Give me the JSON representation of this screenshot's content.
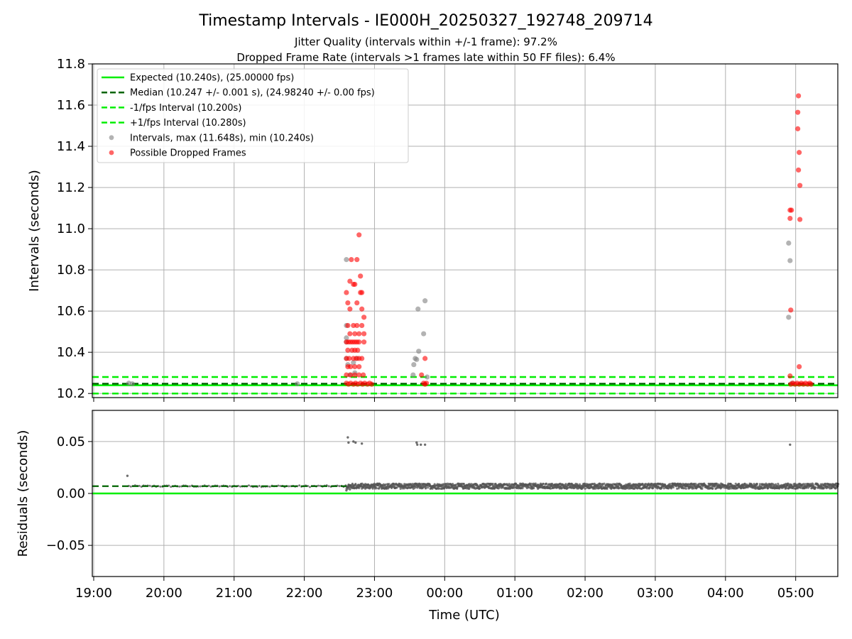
{
  "colors": {
    "expected": "#00ee00",
    "median": "#006400",
    "bounds": "#00ee00",
    "intervals": "#808080",
    "dropped": "#ff0000",
    "residuals": "#555555"
  },
  "chart_data": [
    {
      "type": "scatter",
      "title": "Timestamp Intervals - IE000H_20250327_192748_209714",
      "subtitle_1": "Jitter Quality (intervals within +/-1 frame): 97.2%",
      "subtitle_2": "Dropped Frame Rate (intervals >1 frames late within 50 FF files): 6.4%",
      "xlabel": "",
      "ylabel": "Intervals (seconds)",
      "x_unit": "hours since 19:00 UTC",
      "xlim": [
        -0.02,
        10.6
      ],
      "ylim": [
        10.18,
        11.8
      ],
      "yticks": [
        10.2,
        10.4,
        10.6,
        10.8,
        11.0,
        11.2,
        11.4,
        11.6,
        11.8
      ],
      "ytick_labels": [
        "10.2",
        "10.4",
        "10.6",
        "10.8",
        "11.0",
        "11.2",
        "11.4",
        "11.6",
        "11.8"
      ],
      "grid": true,
      "legend_position": "top-left",
      "legend": [
        {
          "label": "Expected (10.240s), (25.00000 fps)",
          "style": "solid-line",
          "color": "#00ee00"
        },
        {
          "label": "Median (10.247 +/- 0.001 s), (24.98240 +/- 0.00 fps)",
          "style": "dashed-line",
          "color": "#006400"
        },
        {
          "label": "-1/fps Interval (10.200s)",
          "style": "dashed-line",
          "color": "#00ee00"
        },
        {
          "label": "+1/fps Interval (10.280s)",
          "style": "dashed-line",
          "color": "#00ee00"
        },
        {
          "label": "Intervals, max (11.648s), min (10.240s)",
          "style": "marker",
          "color": "#808080"
        },
        {
          "label": "Possible Dropped Frames",
          "style": "marker",
          "color": "#ff0000"
        }
      ],
      "lines": {
        "expected": 10.24,
        "median": 10.247,
        "lower": 10.2,
        "upper": 10.28
      },
      "series": [
        {
          "name": "Intervals",
          "points": [
            [
              0.5,
              10.25
            ],
            [
              0.55,
              10.247
            ],
            [
              2.9,
              10.247
            ],
            [
              3.6,
              10.85
            ],
            [
              3.6,
              10.53
            ],
            [
              3.6,
              10.47
            ],
            [
              3.6,
              10.45
            ],
            [
              3.6,
              10.37
            ],
            [
              3.62,
              10.34
            ],
            [
              3.65,
              10.29
            ],
            [
              3.7,
              10.35
            ],
            [
              3.72,
              10.3
            ],
            [
              3.75,
              10.37
            ],
            [
              4.55,
              10.29
            ],
            [
              4.56,
              10.34
            ],
            [
              4.58,
              10.37
            ],
            [
              4.6,
              10.365
            ],
            [
              4.62,
              10.61
            ],
            [
              4.63,
              10.405
            ],
            [
              4.7,
              10.49
            ],
            [
              4.72,
              10.65
            ],
            [
              4.75,
              10.28
            ],
            [
              9.9,
              10.93
            ],
            [
              9.92,
              10.845
            ],
            [
              9.9,
              10.57
            ],
            [
              9.95,
              10.25
            ]
          ]
        },
        {
          "name": "Possible Dropped Frames",
          "points": [
            [
              3.6,
              10.69
            ],
            [
              3.62,
              10.64
            ],
            [
              3.65,
              10.745
            ],
            [
              3.65,
              10.61
            ],
            [
              3.67,
              10.85
            ],
            [
              3.7,
              10.73
            ],
            [
              3.72,
              10.73
            ],
            [
              3.75,
              10.85
            ],
            [
              3.75,
              10.64
            ],
            [
              3.78,
              10.97
            ],
            [
              3.8,
              10.77
            ],
            [
              3.8,
              10.69
            ],
            [
              3.82,
              10.69
            ],
            [
              3.82,
              10.61
            ],
            [
              3.85,
              10.57
            ],
            [
              3.62,
              10.53
            ],
            [
              3.65,
              10.49
            ],
            [
              3.7,
              10.53
            ],
            [
              3.72,
              10.49
            ],
            [
              3.75,
              10.53
            ],
            [
              3.78,
              10.49
            ],
            [
              3.82,
              10.53
            ],
            [
              3.85,
              10.49
            ],
            [
              3.6,
              10.45
            ],
            [
              3.63,
              10.45
            ],
            [
              3.66,
              10.45
            ],
            [
              3.69,
              10.45
            ],
            [
              3.72,
              10.45
            ],
            [
              3.75,
              10.45
            ],
            [
              3.78,
              10.45
            ],
            [
              3.85,
              10.45
            ],
            [
              3.62,
              10.41
            ],
            [
              3.68,
              10.41
            ],
            [
              3.72,
              10.41
            ],
            [
              3.76,
              10.41
            ],
            [
              3.6,
              10.37
            ],
            [
              3.64,
              10.37
            ],
            [
              3.7,
              10.37
            ],
            [
              3.74,
              10.37
            ],
            [
              3.78,
              10.37
            ],
            [
              3.82,
              10.37
            ],
            [
              3.62,
              10.33
            ],
            [
              3.66,
              10.33
            ],
            [
              3.72,
              10.33
            ],
            [
              3.78,
              10.33
            ],
            [
              3.6,
              10.29
            ],
            [
              3.66,
              10.29
            ],
            [
              3.72,
              10.29
            ],
            [
              3.78,
              10.29
            ],
            [
              3.84,
              10.29
            ],
            [
              3.6,
              10.25
            ],
            [
              3.63,
              10.245
            ],
            [
              3.66,
              10.25
            ],
            [
              3.7,
              10.245
            ],
            [
              3.73,
              10.25
            ],
            [
              3.76,
              10.245
            ],
            [
              3.8,
              10.25
            ],
            [
              3.83,
              10.245
            ],
            [
              3.86,
              10.25
            ],
            [
              3.9,
              10.245
            ],
            [
              3.93,
              10.25
            ],
            [
              3.96,
              10.245
            ],
            [
              4.67,
              10.29
            ],
            [
              4.72,
              10.37
            ],
            [
              4.7,
              10.25
            ],
            [
              4.72,
              10.245
            ],
            [
              4.74,
              10.25
            ],
            [
              9.92,
              11.09
            ],
            [
              9.94,
              11.09
            ],
            [
              9.92,
              11.05
            ],
            [
              9.93,
              10.605
            ],
            [
              9.92,
              10.285
            ],
            [
              10.04,
              11.645
            ],
            [
              10.03,
              11.565
            ],
            [
              10.03,
              11.485
            ],
            [
              10.05,
              11.37
            ],
            [
              10.04,
              11.285
            ],
            [
              10.06,
              11.21
            ],
            [
              10.06,
              11.045
            ],
            [
              10.05,
              10.33
            ],
            [
              9.93,
              10.245
            ],
            [
              9.96,
              10.25
            ],
            [
              9.99,
              10.245
            ],
            [
              10.02,
              10.25
            ],
            [
              10.05,
              10.245
            ],
            [
              10.08,
              10.25
            ],
            [
              10.11,
              10.245
            ],
            [
              10.14,
              10.25
            ],
            [
              10.17,
              10.245
            ],
            [
              10.2,
              10.25
            ],
            [
              10.22,
              10.245
            ]
          ]
        }
      ]
    },
    {
      "type": "scatter",
      "xlabel": "Time (UTC)",
      "ylabel": "Residuals (seconds)",
      "xlim": [
        -0.02,
        10.6
      ],
      "ylim": [
        -0.08,
        0.08
      ],
      "yticks": [
        -0.05,
        0.0,
        0.05
      ],
      "ytick_labels": [
        "−0.05",
        "0.00",
        "0.05"
      ],
      "xticks": [
        0,
        1,
        2,
        3,
        4,
        5,
        6,
        7,
        8,
        9,
        10
      ],
      "xtick_labels": [
        "19:00",
        "20:00",
        "21:00",
        "22:00",
        "23:00",
        "00:00",
        "01:00",
        "02:00",
        "03:00",
        "04:00",
        "05:00"
      ],
      "grid": true,
      "lines": {
        "zero": 0.0,
        "median": 0.007
      },
      "series": [
        {
          "name": "Residuals",
          "baseline": 0.007,
          "spread": 0.0025,
          "sparse_range": [
            0.5,
            3.6
          ],
          "dense_range": [
            3.6,
            10.6
          ],
          "outliers": [
            [
              0.48,
              0.017
            ],
            [
              3.62,
              0.054
            ],
            [
              3.63,
              0.049
            ],
            [
              3.7,
              0.05
            ],
            [
              3.73,
              0.049
            ],
            [
              3.82,
              0.048
            ],
            [
              4.6,
              0.049
            ],
            [
              4.61,
              0.047
            ],
            [
              4.66,
              0.047
            ],
            [
              4.72,
              0.047
            ],
            [
              9.92,
              0.047
            ],
            [
              3.6,
              0.003
            ],
            [
              3.65,
              0.004
            ]
          ]
        }
      ]
    }
  ]
}
